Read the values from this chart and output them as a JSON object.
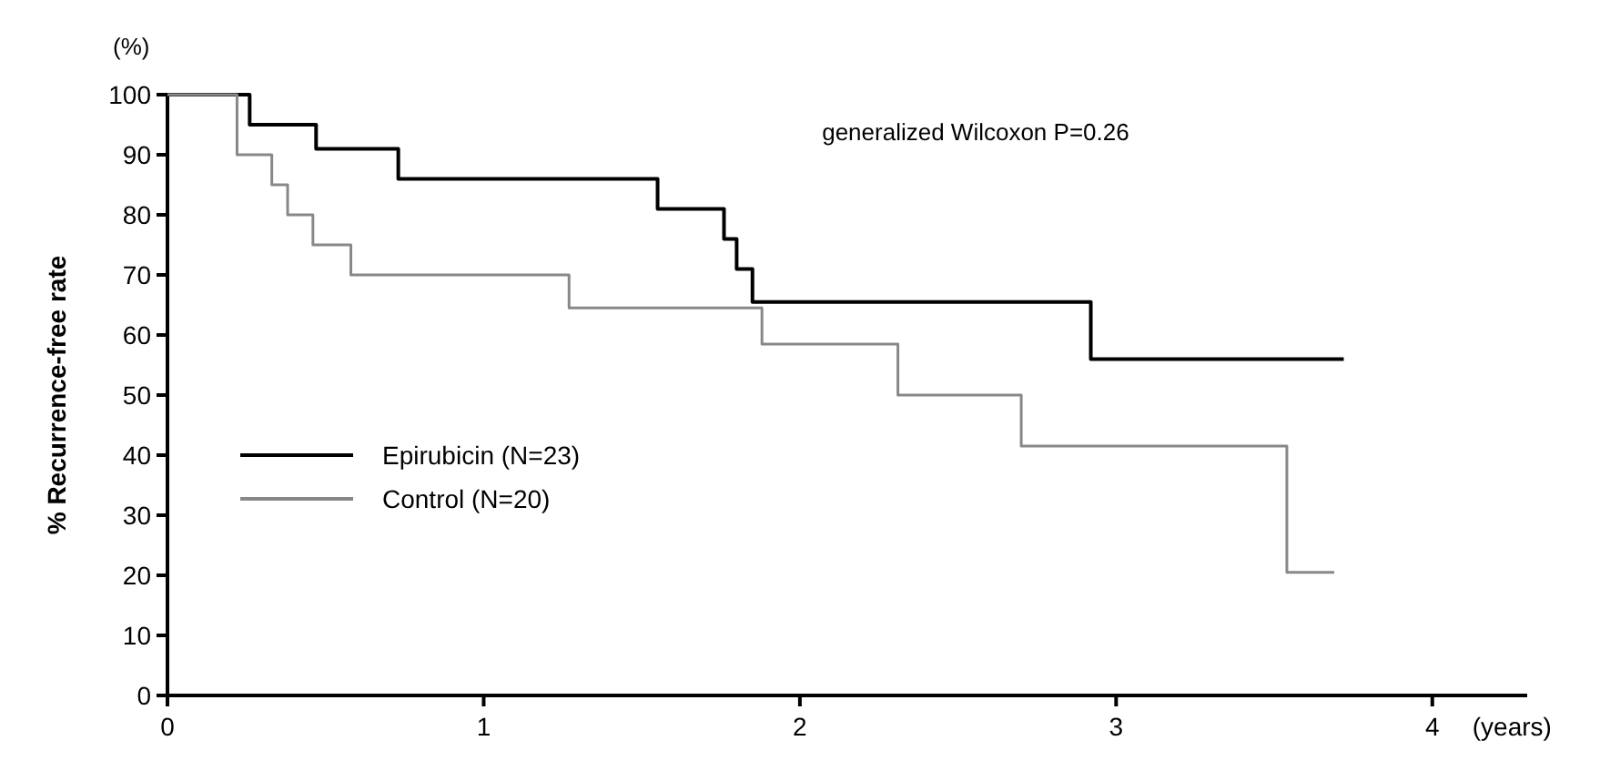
{
  "chart_data": {
    "type": "step",
    "xlabel": "(years)",
    "ylabel": "% Recurrence-free rate",
    "annotations": [
      "(%)",
      "generalized Wilcoxon P=0.26"
    ],
    "xlim": [
      0,
      4.3
    ],
    "xticks": [
      0,
      1,
      2,
      3,
      4
    ],
    "ylim": [
      0,
      100
    ],
    "yticks": [
      0,
      10,
      20,
      30,
      40,
      50,
      60,
      70,
      80,
      90,
      100
    ],
    "legend": "left",
    "grid": false,
    "series": [
      {
        "name": "Epirubicin (N=23)",
        "color": "#000000",
        "x": [
          0,
          0.26,
          0.47,
          0.73,
          1.55,
          1.76,
          1.8,
          1.85,
          2.92,
          3.72
        ],
        "values": [
          100,
          95,
          91,
          86,
          81,
          76,
          71,
          65.5,
          56,
          56
        ]
      },
      {
        "name": "Control (N=20)",
        "color": "#888888",
        "x": [
          0,
          0.22,
          0.33,
          0.38,
          0.46,
          0.58,
          1.27,
          1.88,
          2.31,
          2.7,
          3.54,
          3.69
        ],
        "values": [
          100,
          90,
          85,
          80,
          75,
          70,
          64.5,
          58.5,
          50,
          41.5,
          20.5,
          20.5
        ]
      }
    ]
  }
}
